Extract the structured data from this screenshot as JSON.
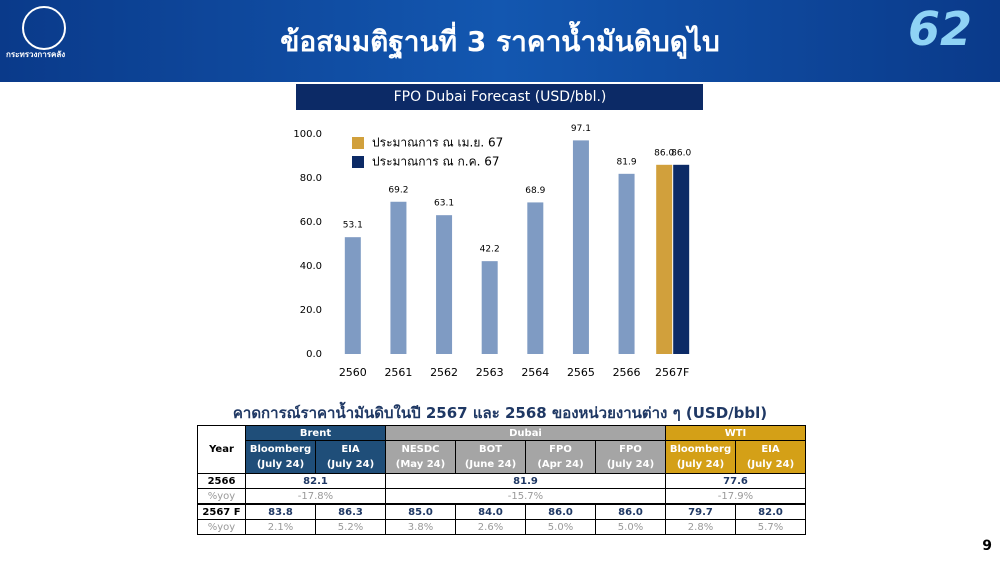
{
  "header": {
    "title": "ข้อสมมติฐานที่ 3 ราคาน้ำมันดิบดูไบ",
    "logo_text": "กระทรวงการคลัง",
    "logo_right": "62"
  },
  "chart_data": {
    "type": "bar",
    "title": "FPO Dubai Forecast (USD/bbl.)",
    "categories": [
      "2560",
      "2561",
      "2562",
      "2563",
      "2564",
      "2565",
      "2566",
      "2567F"
    ],
    "series": [
      {
        "color": "#7f9bc3",
        "values": [
          53.1,
          69.2,
          63.1,
          42.2,
          68.9,
          97.1,
          81.9,
          null
        ],
        "value_labels": [
          "53.1",
          "69.2",
          "63.1",
          "42.2",
          "68.9",
          "97.1",
          "81.9",
          null
        ]
      },
      {
        "name": "ประมาณการ ณ เม.ย. 67",
        "color": "#d1a03c",
        "values": [
          null,
          null,
          null,
          null,
          null,
          null,
          null,
          86.0
        ],
        "value_labels": [
          null,
          null,
          null,
          null,
          null,
          null,
          null,
          "86.0"
        ]
      },
      {
        "name": "ประมาณการ ณ ก.ค. 67",
        "color": "#0c2a66",
        "values": [
          null,
          null,
          null,
          null,
          null,
          null,
          null,
          86.0
        ],
        "value_labels": [
          null,
          null,
          null,
          null,
          null,
          null,
          null,
          "86.0"
        ]
      }
    ],
    "ylim": [
      0,
      100
    ],
    "yticks": [
      {
        "value": 0,
        "label": "0.0"
      },
      {
        "value": 20,
        "label": "20.0"
      },
      {
        "value": 40,
        "label": "40.0"
      },
      {
        "value": 60,
        "label": "60.0"
      },
      {
        "value": 80,
        "label": "80.0"
      },
      {
        "value": 100,
        "label": "100.0"
      }
    ],
    "grid": false
  },
  "table": {
    "title": "คาดการณ์ราคาน้ำมันดิบในปี 2567 และ 2568 ของหน่วยงานต่าง ๆ (USD/bbl)",
    "corner": "Year",
    "groups": [
      {
        "name": "Brent",
        "color": "#1f4e79",
        "sources": [
          {
            "name": "Bloomberg",
            "period": "(July 24)"
          },
          {
            "name": "EIA",
            "period": "(July 24)"
          }
        ]
      },
      {
        "name": "Dubai",
        "color": "#a5a5a5",
        "sources": [
          {
            "name": "NESDC",
            "period": "(May 24)"
          },
          {
            "name": "BOT",
            "period": "(June 24)"
          },
          {
            "name": "FPO",
            "period": "(Apr 24)"
          },
          {
            "name": "FPO",
            "period": "(July 24)"
          }
        ]
      },
      {
        "name": "WTI",
        "color": "#d4a017",
        "sources": [
          {
            "name": "Bloomberg",
            "period": "(July 24)"
          },
          {
            "name": "EIA",
            "period": "(July 24)"
          }
        ]
      }
    ],
    "rows": [
      {
        "year": "2566",
        "values": [
          "82.1",
          "81.9",
          "77.6"
        ]
      },
      {
        "year": "%yoy",
        "values": [
          "-17.8%",
          "-15.7%",
          "-17.9%"
        ]
      },
      {
        "year": "2567 F",
        "values": [
          "83.8",
          "86.3",
          "85.0",
          "84.0",
          "86.0",
          "86.0",
          "79.7",
          "82.0"
        ]
      },
      {
        "year": "%yoy",
        "values": [
          "2.1%",
          "5.2%",
          "3.8%",
          "2.6%",
          "5.0%",
          "5.0%",
          "2.8%",
          "5.7%"
        ]
      }
    ]
  },
  "page_number": "9"
}
